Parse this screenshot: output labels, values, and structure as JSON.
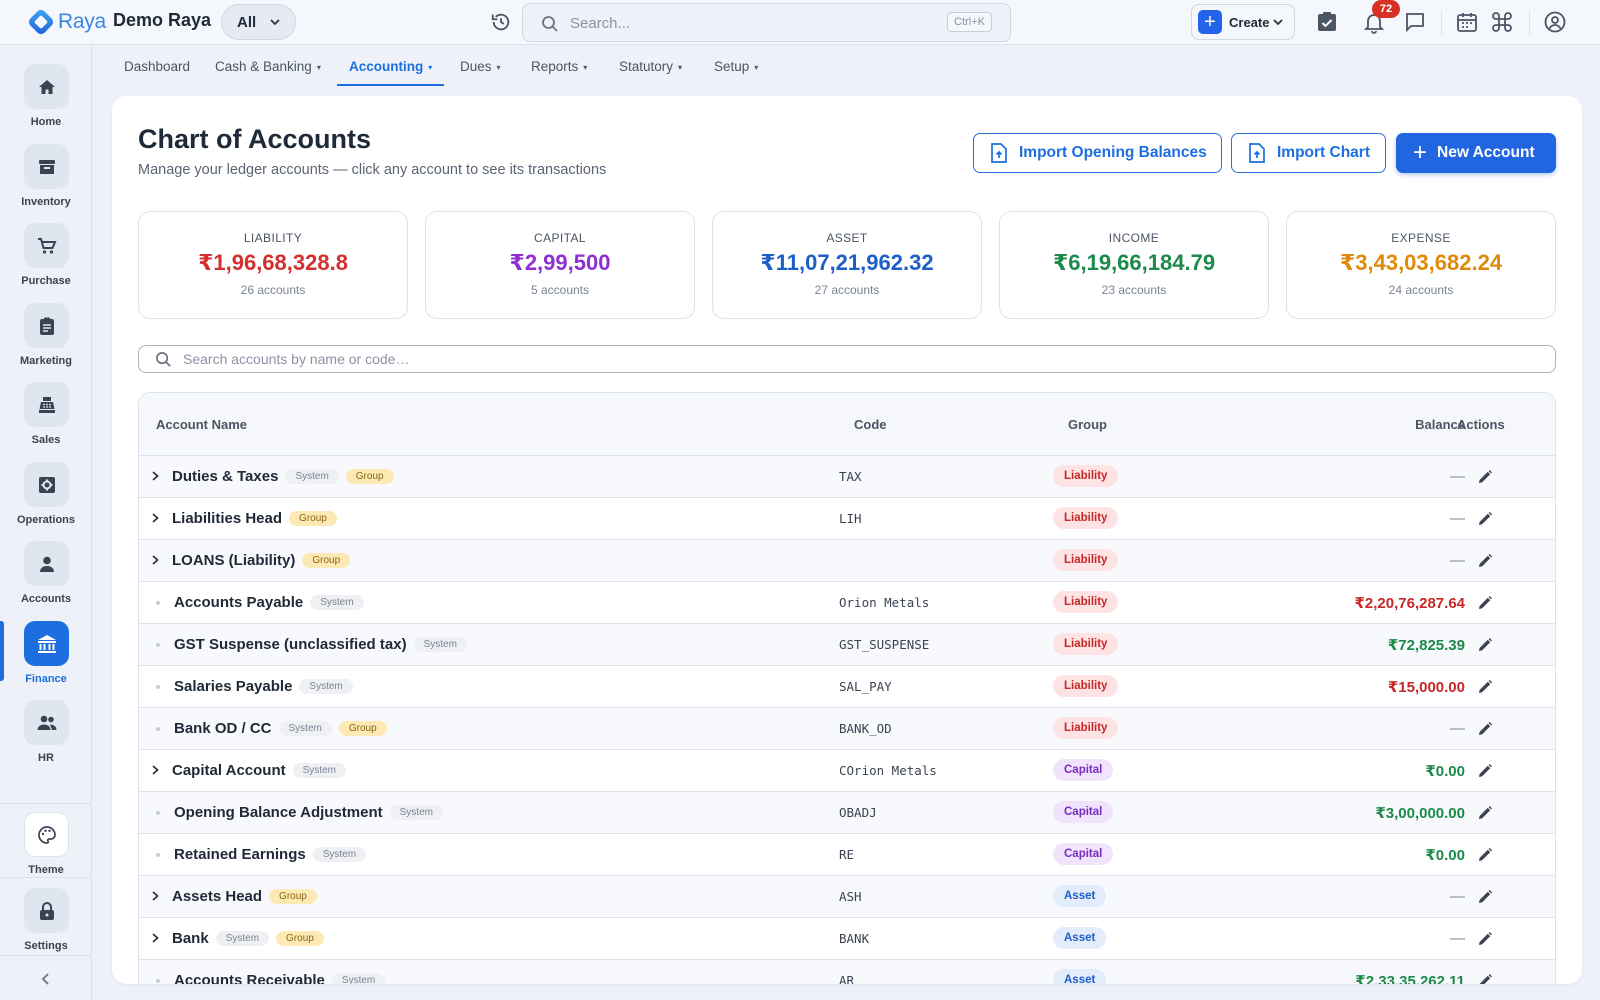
{
  "app": {
    "logo_text": "Raya",
    "company": "Demo Raya",
    "scope": "All",
    "search_placeholder": "Search...",
    "search_shortcut": "Ctrl+K",
    "create_label": "Create",
    "notification_count": "72",
    "accent_color": "#1d6fe0"
  },
  "sidebar": {
    "items": [
      {
        "label": "Home",
        "icon": "home-icon"
      },
      {
        "label": "Inventory",
        "icon": "archive-icon"
      },
      {
        "label": "Purchase",
        "icon": "cart-icon"
      },
      {
        "label": "Marketing",
        "icon": "clipboard-icon"
      },
      {
        "label": "Sales",
        "icon": "register-icon"
      },
      {
        "label": "Operations",
        "icon": "settings-box-icon"
      },
      {
        "label": "Accounts",
        "icon": "person-icon"
      },
      {
        "label": "Finance",
        "icon": "bank-icon",
        "active": true
      },
      {
        "label": "HR",
        "icon": "people-icon"
      }
    ],
    "theme_label": "Theme",
    "settings_label": "Settings"
  },
  "nav": {
    "tabs": [
      {
        "label": "Dashboard",
        "has_menu": false
      },
      {
        "label": "Cash & Banking",
        "has_menu": true
      },
      {
        "label": "Accounting",
        "has_menu": true,
        "active": true
      },
      {
        "label": "Dues",
        "has_menu": true
      },
      {
        "label": "Reports",
        "has_menu": true
      },
      {
        "label": "Statutory",
        "has_menu": true
      },
      {
        "label": "Setup",
        "has_menu": true
      }
    ],
    "caret": "▾"
  },
  "page": {
    "title": "Chart of Accounts",
    "subtitle": "Manage your ledger accounts — click any account to see its transactions",
    "btn_import_opening": "Import Opening Balances",
    "btn_import_chart": "Import Chart",
    "btn_new_account": "New Account",
    "account_search_placeholder": "Search accounts by name or code…"
  },
  "stats": [
    {
      "label": "LIABILITY",
      "value": "₹1,96,68,328.8",
      "count": "26 accounts",
      "color": "#d32f2f"
    },
    {
      "label": "CAPITAL",
      "value": "₹2,99,500",
      "count": "5 accounts",
      "color": "#8e2fd0"
    },
    {
      "label": "ASSET",
      "value": "₹11,07,21,962.32",
      "count": "27 accounts",
      "color": "#1d5fc9"
    },
    {
      "label": "INCOME",
      "value": "₹6,19,66,184.79",
      "count": "23 accounts",
      "color": "#1b8a4a"
    },
    {
      "label": "EXPENSE",
      "value": "₹3,43,03,682.24",
      "count": "24 accounts",
      "color": "#e08a0b"
    }
  ],
  "table": {
    "headers": {
      "name": "Account Name",
      "code": "Code",
      "group": "Group",
      "balance": "Balance",
      "actions": "Actions"
    },
    "system_tag": "System",
    "group_tag": "Group",
    "rows": [
      {
        "name": "Duties & Taxes",
        "expandable": true,
        "system": true,
        "group_tag": true,
        "code": "TAX",
        "group": "Liability",
        "balance": "—",
        "balance_kind": "dash"
      },
      {
        "name": "Liabilities Head",
        "expandable": true,
        "system": false,
        "group_tag": true,
        "code": "LIH",
        "group": "Liability",
        "balance": "—",
        "balance_kind": "dash"
      },
      {
        "name": "LOANS (Liability)",
        "expandable": true,
        "system": false,
        "group_tag": true,
        "code": "",
        "group": "Liability",
        "balance": "—",
        "balance_kind": "dash"
      },
      {
        "name": "Accounts Payable",
        "expandable": false,
        "system": true,
        "group_tag": false,
        "code": "Orion Metals",
        "group": "Liability",
        "balance": "₹2,20,76,287.64",
        "balance_kind": "neg"
      },
      {
        "name": "GST Suspense (unclassified tax)",
        "expandable": false,
        "system": true,
        "group_tag": false,
        "code": "GST_SUSPENSE",
        "group": "Liability",
        "balance": "₹72,825.39",
        "balance_kind": "pos"
      },
      {
        "name": "Salaries Payable",
        "expandable": false,
        "system": true,
        "group_tag": false,
        "code": "SAL_PAY",
        "group": "Liability",
        "balance": "₹15,000.00",
        "balance_kind": "neg"
      },
      {
        "name": "Bank OD / CC",
        "expandable": false,
        "system": true,
        "group_tag": true,
        "code": "BANK_OD",
        "group": "Liability",
        "balance": "—",
        "balance_kind": "dash"
      },
      {
        "name": "Capital Account",
        "expandable": true,
        "system": true,
        "group_tag": false,
        "code": "COrion Metals",
        "group": "Capital",
        "balance": "₹0.00",
        "balance_kind": "pos"
      },
      {
        "name": "Opening Balance Adjustment",
        "expandable": false,
        "system": true,
        "group_tag": false,
        "code": "OBADJ",
        "group": "Capital",
        "balance": "₹3,00,000.00",
        "balance_kind": "pos"
      },
      {
        "name": "Retained Earnings",
        "expandable": false,
        "system": true,
        "group_tag": false,
        "code": "RE",
        "group": "Capital",
        "balance": "₹0.00",
        "balance_kind": "pos"
      },
      {
        "name": "Assets Head",
        "expandable": true,
        "system": false,
        "group_tag": true,
        "code": "ASH",
        "group": "Asset",
        "balance": "—",
        "balance_kind": "dash"
      },
      {
        "name": "Bank",
        "expandable": true,
        "system": true,
        "group_tag": true,
        "code": "BANK",
        "group": "Asset",
        "balance": "—",
        "balance_kind": "dash"
      },
      {
        "name": "Accounts Receivable",
        "expandable": false,
        "system": true,
        "group_tag": false,
        "code": "AR",
        "group": "Asset",
        "balance": "₹2,33,35,262.11",
        "balance_kind": "pos"
      }
    ]
  }
}
